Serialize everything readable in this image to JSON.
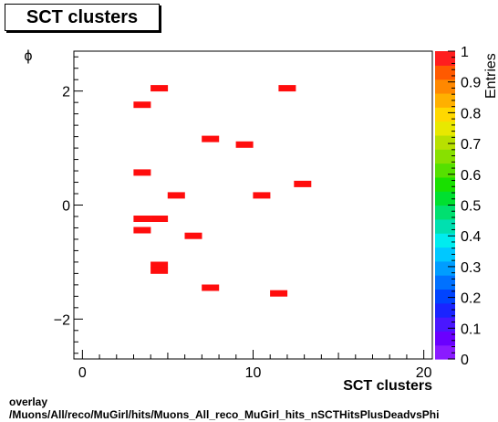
{
  "chart_data": {
    "type": "heatmap",
    "title": "SCT clusters",
    "xlabel": "SCT clusters",
    "ylabel": "ϕ",
    "zlabel": "Entries",
    "xlim": [
      -0.5,
      20.5
    ],
    "ylim": [
      -2.7,
      2.7
    ],
    "zlim": [
      0,
      1
    ],
    "x_ticks": [
      "0",
      "10",
      "20"
    ],
    "y_ticks": [
      "−2",
      "0",
      "2"
    ],
    "z_ticks": [
      "0",
      "0.1",
      "0.2",
      "0.3",
      "0.4",
      "0.5",
      "0.6",
      "0.7",
      "0.8",
      "0.9",
      "1"
    ],
    "bin_width_x": 1,
    "bin_height_y": 0.1,
    "cells": [
      {
        "x": 4.5,
        "y": 2.05,
        "value": 1
      },
      {
        "x": 12.0,
        "y": 2.05,
        "value": 1
      },
      {
        "x": 3.5,
        "y": 1.76,
        "value": 1
      },
      {
        "x": 7.5,
        "y": 1.16,
        "value": 1
      },
      {
        "x": 9.5,
        "y": 1.06,
        "value": 1
      },
      {
        "x": 3.5,
        "y": 0.57,
        "value": 1
      },
      {
        "x": 12.9,
        "y": 0.37,
        "value": 1
      },
      {
        "x": 5.5,
        "y": 0.17,
        "value": 1
      },
      {
        "x": 10.5,
        "y": 0.17,
        "value": 1
      },
      {
        "x": 3.5,
        "y": -0.24,
        "value": 1
      },
      {
        "x": 4.5,
        "y": -0.24,
        "value": 1
      },
      {
        "x": 3.5,
        "y": -0.44,
        "value": 1
      },
      {
        "x": 6.5,
        "y": -0.54,
        "value": 1
      },
      {
        "x": 4.5,
        "y": -1.05,
        "value": 1
      },
      {
        "x": 4.5,
        "y": -1.15,
        "value": 1
      },
      {
        "x": 7.5,
        "y": -1.45,
        "value": 1
      },
      {
        "x": 11.5,
        "y": -1.55,
        "value": 1
      }
    ]
  },
  "footer": {
    "line1": "overlay",
    "line2": "/Muons/All/reco/MuGirl/hits/Muons_All_reco_MuGirl_hits_nSCTHitsPlusDeadvsPhi"
  }
}
